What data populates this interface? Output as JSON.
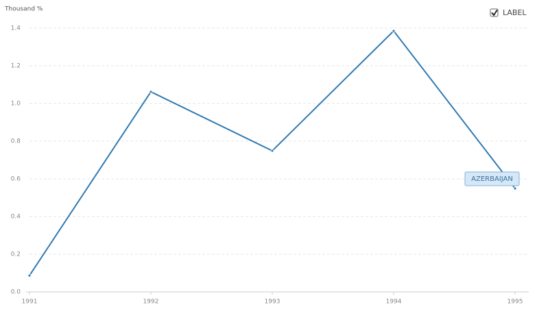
{
  "chart_data": {
    "type": "line",
    "y_axis_label": "Thousand %",
    "toggle_label": "LABEL",
    "categories": [
      "1991",
      "1992",
      "1993",
      "1994",
      "1995"
    ],
    "series": [
      {
        "name": "AZERBAIJAN",
        "color": "#2f7ab3",
        "values": [
          0.087,
          1.062,
          0.749,
          1.385,
          0.549
        ]
      }
    ],
    "ylim": [
      0,
      1.4
    ],
    "yticks": [
      {
        "value": 0,
        "label": "0.0"
      },
      0.2,
      0.4,
      0.6,
      0.8,
      {
        "value": 1,
        "label": "1.0"
      },
      1.2,
      1.4
    ],
    "grid": true
  }
}
